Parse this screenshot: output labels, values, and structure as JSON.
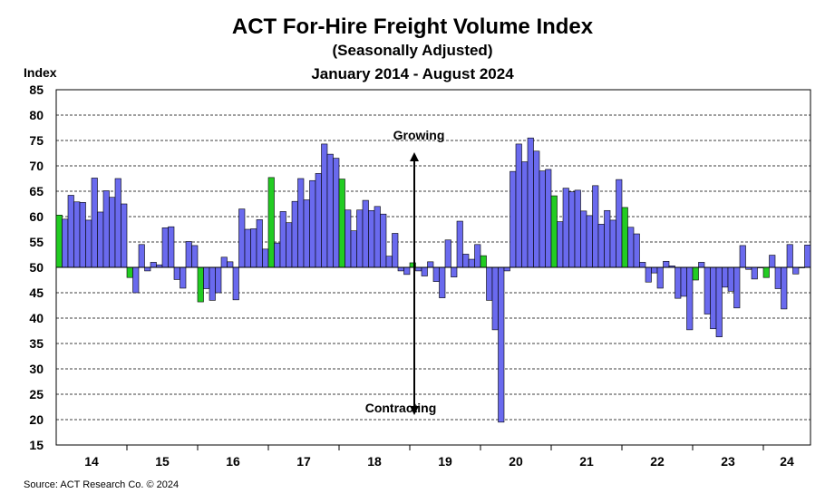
{
  "chart_data": {
    "type": "bar",
    "title": "ACT For-Hire Freight Volume Index",
    "subtitle": "(Seasonally Adjusted)",
    "date_range": "January 2014 - August 2024",
    "ylabel": "Index",
    "ylim": [
      15,
      85
    ],
    "baseline": 50,
    "yticks": [
      15,
      20,
      25,
      30,
      35,
      40,
      45,
      50,
      55,
      60,
      65,
      70,
      75,
      80,
      85
    ],
    "grid": true,
    "x_tick_labels": [
      "14",
      "15",
      "16",
      "17",
      "18",
      "19",
      "20",
      "21",
      "22",
      "23",
      "24"
    ],
    "start": "2014-01",
    "end": "2024-08",
    "january_color": "#22cc22",
    "bar_color": "#6a6aee",
    "values": [
      60.3,
      59.5,
      64.2,
      62.9,
      62.8,
      59.3,
      67.6,
      60.9,
      65.1,
      63.8,
      67.5,
      62.5,
      48.0,
      45.0,
      54.5,
      49.3,
      51.0,
      50.5,
      57.8,
      58.0,
      47.6,
      45.9,
      55.1,
      54.3,
      43.2,
      45.8,
      43.5,
      45.0,
      52.0,
      51.1,
      43.6,
      61.5,
      57.5,
      57.6,
      59.4,
      53.6,
      67.7,
      54.8,
      61.0,
      58.8,
      63.0,
      67.5,
      63.3,
      67.1,
      68.5,
      74.3,
      72.3,
      71.5,
      67.4,
      61.3,
      57.2,
      61.3,
      63.2,
      61.2,
      62.0,
      60.5,
      52.2,
      56.7,
      49.3,
      48.6,
      50.9,
      49.3,
      48.3,
      51.1,
      47.2,
      44.0,
      55.4,
      48.1,
      59.1,
      52.6,
      51.6,
      54.5,
      52.3,
      43.5,
      37.7,
      19.5,
      49.3,
      68.9,
      74.3,
      70.8,
      75.5,
      72.9,
      69.0,
      69.3,
      64.1,
      59.0,
      65.6,
      64.9,
      65.2,
      61.1,
      60.2,
      66.1,
      58.5,
      61.2,
      59.3,
      67.3,
      61.8,
      57.9,
      56.6,
      51.0,
      47.1,
      48.9,
      45.9,
      51.2,
      50.3,
      43.9,
      44.3,
      37.7,
      47.5,
      51.0,
      40.8,
      37.9,
      36.3,
      46.1,
      45.3,
      42.0,
      54.3,
      49.6,
      47.7,
      49.9,
      48.0,
      52.4,
      45.8,
      41.8,
      54.5,
      48.7,
      49.9,
      54.4
    ],
    "annotations": {
      "top": "Growing",
      "bottom": "Contracting"
    }
  },
  "source": "Source: ACT Research Co. © 2024"
}
